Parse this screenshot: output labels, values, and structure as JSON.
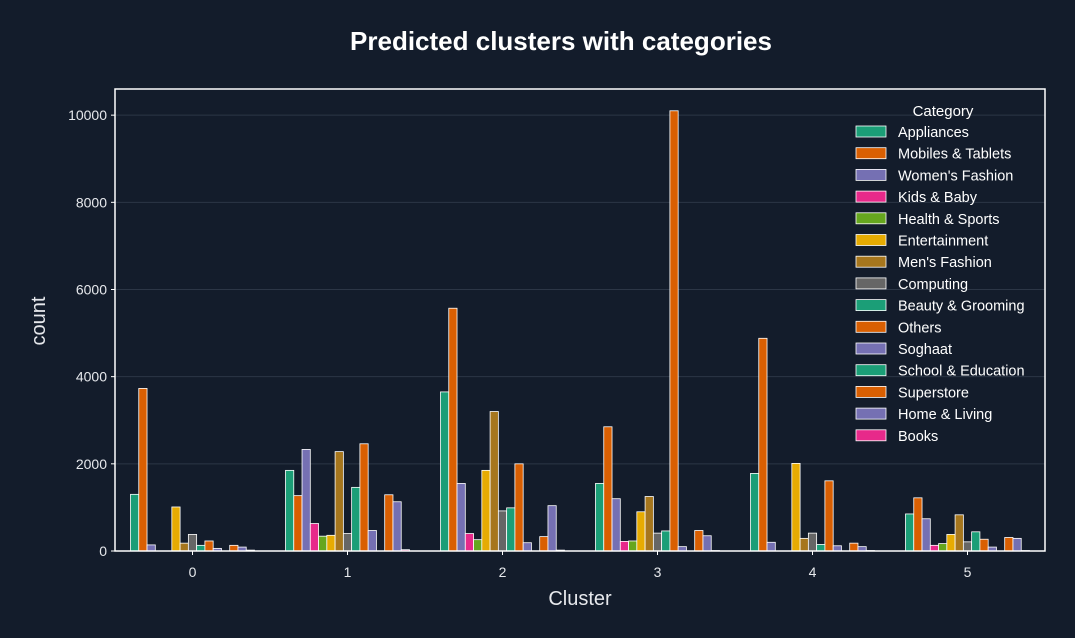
{
  "chart_data": {
    "type": "bar",
    "title": "Predicted clusters with categories",
    "xlabel": "Cluster",
    "ylabel": "count",
    "categories": [
      "0",
      "1",
      "2",
      "3",
      "4",
      "5"
    ],
    "yticks": [
      0,
      2000,
      4000,
      6000,
      8000,
      10000
    ],
    "ylim": [
      0,
      10600
    ],
    "grid": true,
    "legend": {
      "title": "Category",
      "placement": "top-right"
    },
    "series": [
      {
        "name": "Appliances",
        "color": "#1b9e77",
        "values": [
          1300,
          1850,
          3650,
          1550,
          1780,
          850
        ]
      },
      {
        "name": "Mobiles & Tablets",
        "color": "#d95f02",
        "values": [
          3730,
          1270,
          5570,
          2850,
          4880,
          1220
        ]
      },
      {
        "name": "Women's Fashion",
        "color": "#7570b3",
        "values": [
          140,
          2330,
          1550,
          1200,
          200,
          740
        ]
      },
      {
        "name": "Kids & Baby",
        "color": "#e7298a",
        "values": [
          0,
          630,
          400,
          220,
          0,
          130
        ]
      },
      {
        "name": "Health & Sports",
        "color": "#66a61e",
        "values": [
          0,
          340,
          260,
          230,
          0,
          170
        ]
      },
      {
        "name": "Entertainment",
        "color": "#e6ab02",
        "values": [
          1010,
          360,
          1850,
          900,
          2010,
          380
        ]
      },
      {
        "name": "Men's Fashion",
        "color": "#a6761d",
        "values": [
          180,
          2280,
          3200,
          1250,
          290,
          830
        ]
      },
      {
        "name": "Computing",
        "color": "#666666",
        "values": [
          380,
          400,
          920,
          410,
          410,
          210
        ]
      },
      {
        "name": "Beauty & Grooming",
        "color": "#1b9e77",
        "values": [
          130,
          1460,
          990,
          460,
          150,
          440
        ]
      },
      {
        "name": "Others",
        "color": "#d95f02",
        "values": [
          230,
          2460,
          2000,
          10100,
          1610,
          270
        ]
      },
      {
        "name": "Soghaat",
        "color": "#7570b3",
        "values": [
          60,
          470,
          190,
          100,
          120,
          90
        ]
      },
      {
        "name": "School & Education",
        "color": "#1b9e77",
        "values": [
          0,
          0,
          0,
          0,
          0,
          0
        ]
      },
      {
        "name": "Superstore",
        "color": "#d95f02",
        "values": [
          130,
          1290,
          330,
          470,
          180,
          310
        ]
      },
      {
        "name": "Home & Living",
        "color": "#7570b3",
        "values": [
          90,
          1130,
          1040,
          350,
          100,
          290
        ]
      },
      {
        "name": "Books",
        "color": "#e7298a",
        "values": [
          20,
          30,
          20,
          10,
          10,
          10
        ]
      }
    ]
  }
}
